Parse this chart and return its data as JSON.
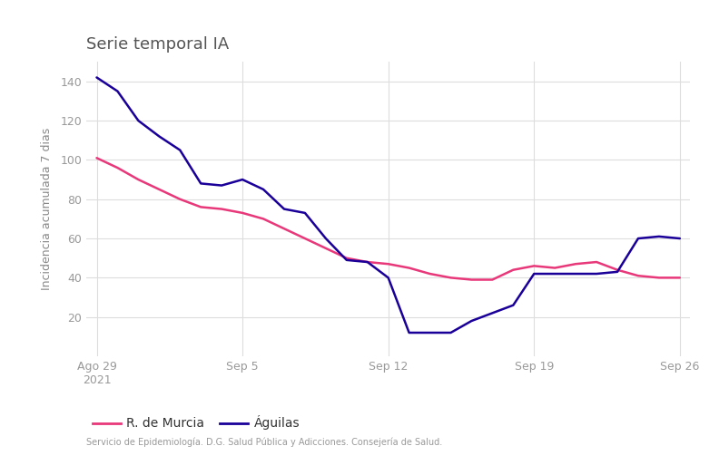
{
  "title": "Serie temporal IA",
  "ylabel": "Incidencia acumulada 7 dias",
  "source": "Servicio de Epidemiología. D.G. Salud Pública y Adicciones. Consejería de Salud.",
  "legend": [
    "R. de Murcia",
    "Águilas"
  ],
  "murcia_color": "#e8387a",
  "aguilas_color": "#1a0099",
  "background_color": "#f0f0f0",
  "plot_bg_color": "#ffffff",
  "yticks": [
    20,
    40,
    60,
    80,
    100,
    120,
    140
  ],
  "ylim": [
    0,
    150
  ],
  "xtick_labels": [
    "Ago 29\n2021",
    "Sep 5",
    "Sep 12",
    "Sep 19",
    "Sep 26"
  ],
  "xtick_positions": [
    0,
    7,
    14,
    21,
    28
  ],
  "murcia_x": [
    0,
    1,
    2,
    3,
    4,
    5,
    6,
    7,
    8,
    9,
    10,
    11,
    12,
    13,
    14,
    15,
    16,
    17,
    18,
    19,
    20,
    21,
    22,
    23,
    24,
    25,
    26,
    27,
    28
  ],
  "murcia_y": [
    101,
    96,
    90,
    85,
    80,
    76,
    75,
    73,
    70,
    65,
    60,
    55,
    50,
    48,
    47,
    45,
    42,
    40,
    39,
    39,
    44,
    46,
    45,
    47,
    48,
    44,
    41,
    40,
    40
  ],
  "aguilas_x": [
    0,
    1,
    2,
    3,
    4,
    5,
    6,
    7,
    8,
    9,
    10,
    11,
    12,
    13,
    14,
    15,
    16,
    17,
    18,
    19,
    20,
    21,
    22,
    23,
    24,
    25,
    26,
    27,
    28
  ],
  "aguilas_y": [
    142,
    135,
    120,
    112,
    105,
    88,
    87,
    90,
    85,
    75,
    73,
    60,
    49,
    48,
    40,
    12,
    12,
    12,
    18,
    22,
    26,
    42,
    42,
    42,
    42,
    43,
    60,
    61,
    60
  ],
  "xlim": [
    -0.5,
    28.5
  ]
}
